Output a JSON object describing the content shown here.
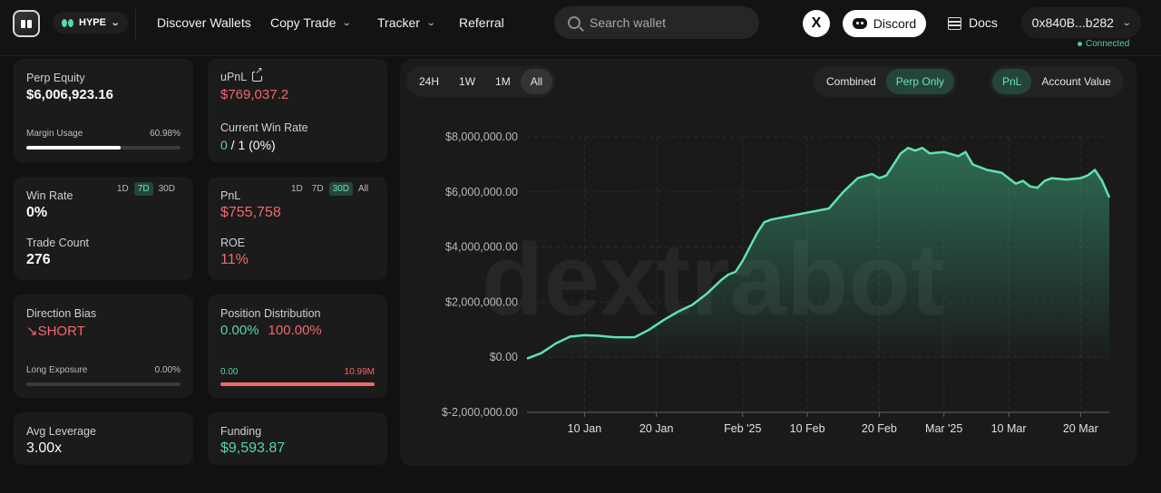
{
  "nav": {
    "chain": "HYPE",
    "links": [
      "Discover Wallets",
      "Copy Trade",
      "Tracker",
      "Referral"
    ],
    "search_placeholder": "Search wallet",
    "x_label": "X",
    "discord": "Discord",
    "docs": "Docs",
    "wallet": "0x840B...b282",
    "connected": "Connected"
  },
  "perp": {
    "label": "Perp Equity",
    "value": "$6,006,923.16",
    "margin_label": "Margin Usage",
    "margin_value": "60.98%",
    "margin_fraction": 0.6098
  },
  "upnl": {
    "label": "uPnL",
    "value": "$769,037.2",
    "winrate_label": "Current Win Rate",
    "winrate_a": "0",
    "winrate_b": " / 1 (0%)"
  },
  "winrate": {
    "label": "Win Rate",
    "value": "0%",
    "toggles": [
      "1D",
      "7D",
      "30D"
    ],
    "active": "7D",
    "trade_label": "Trade Count",
    "trade_value": "276"
  },
  "pnl": {
    "label": "PnL",
    "value": "$755,758",
    "toggles": [
      "1D",
      "7D",
      "30D",
      "All"
    ],
    "active": "30D",
    "roe_label": "ROE",
    "roe_value": "11%"
  },
  "bias": {
    "label": "Direction Bias",
    "value": "↘SHORT",
    "exposure_label": "Long Exposure",
    "exposure_value": "0.00%",
    "exposure_fraction": 0
  },
  "position": {
    "label": "Position Distribution",
    "long_pct": "0.00%",
    "short_pct": "100.00%",
    "long_val": "0.00",
    "short_val": "10.99M"
  },
  "leverage": {
    "label": "Avg Leverage",
    "value": "3.00x"
  },
  "funding": {
    "label": "Funding",
    "value": "$9,593.87"
  },
  "chart_controls": {
    "ranges": [
      "24H",
      "1W",
      "1M",
      "All"
    ],
    "active_range": "All",
    "modes": [
      "Combined",
      "Perp Only"
    ],
    "active_mode": "Perp Only",
    "metrics": [
      "PnL",
      "Account Value"
    ],
    "active_metric": "PnL",
    "watermark": "dextrabot"
  },
  "chart_data": {
    "type": "area",
    "ylim": [
      -2000000,
      8000000
    ],
    "yticks": [
      8000000,
      6000000,
      4000000,
      2000000,
      0,
      -2000000
    ],
    "ytick_labels": [
      "$8,000,000.00",
      "$6,000,000.00",
      "$4,000,000.00",
      "$2,000,000.00",
      "$0.00",
      "$-2,000,000.00"
    ],
    "xtick_labels": [
      "10 Jan",
      "20 Jan",
      "Feb '25",
      "10 Feb",
      "20 Feb",
      "Mar '25",
      "10 Mar",
      "20 Mar"
    ],
    "xticks_day": [
      10,
      20,
      32,
      41,
      51,
      60,
      69,
      79
    ],
    "xlim_day": [
      2,
      83
    ],
    "line_color": "#5fe3ad",
    "points": [
      [
        2,
        -50000
      ],
      [
        4,
        150000
      ],
      [
        6,
        500000
      ],
      [
        8,
        750000
      ],
      [
        10,
        800000
      ],
      [
        12,
        780000
      ],
      [
        14,
        730000
      ],
      [
        16,
        720000
      ],
      [
        17,
        730000
      ],
      [
        19,
        1000000
      ],
      [
        21,
        1350000
      ],
      [
        23,
        1650000
      ],
      [
        25,
        1900000
      ],
      [
        27,
        2300000
      ],
      [
        29,
        2800000
      ],
      [
        30,
        3000000
      ],
      [
        31,
        3100000
      ],
      [
        32,
        3500000
      ],
      [
        33,
        4000000
      ],
      [
        34,
        4500000
      ],
      [
        35,
        4900000
      ],
      [
        36,
        5000000
      ],
      [
        38,
        5100000
      ],
      [
        40,
        5200000
      ],
      [
        42,
        5300000
      ],
      [
        44,
        5400000
      ],
      [
        46,
        6000000
      ],
      [
        48,
        6500000
      ],
      [
        50,
        6650000
      ],
      [
        51,
        6500000
      ],
      [
        52,
        6600000
      ],
      [
        53,
        7000000
      ],
      [
        54,
        7400000
      ],
      [
        55,
        7600000
      ],
      [
        56,
        7500000
      ],
      [
        57,
        7600000
      ],
      [
        58,
        7400000
      ],
      [
        60,
        7450000
      ],
      [
        62,
        7300000
      ],
      [
        63,
        7450000
      ],
      [
        64,
        7000000
      ],
      [
        66,
        6800000
      ],
      [
        68,
        6700000
      ],
      [
        69,
        6500000
      ],
      [
        70,
        6300000
      ],
      [
        71,
        6400000
      ],
      [
        72,
        6200000
      ],
      [
        73,
        6150000
      ],
      [
        74,
        6400000
      ],
      [
        75,
        6500000
      ],
      [
        77,
        6450000
      ],
      [
        79,
        6500000
      ],
      [
        80,
        6600000
      ],
      [
        81,
        6800000
      ],
      [
        82,
        6400000
      ],
      [
        83,
        5800000
      ]
    ]
  }
}
